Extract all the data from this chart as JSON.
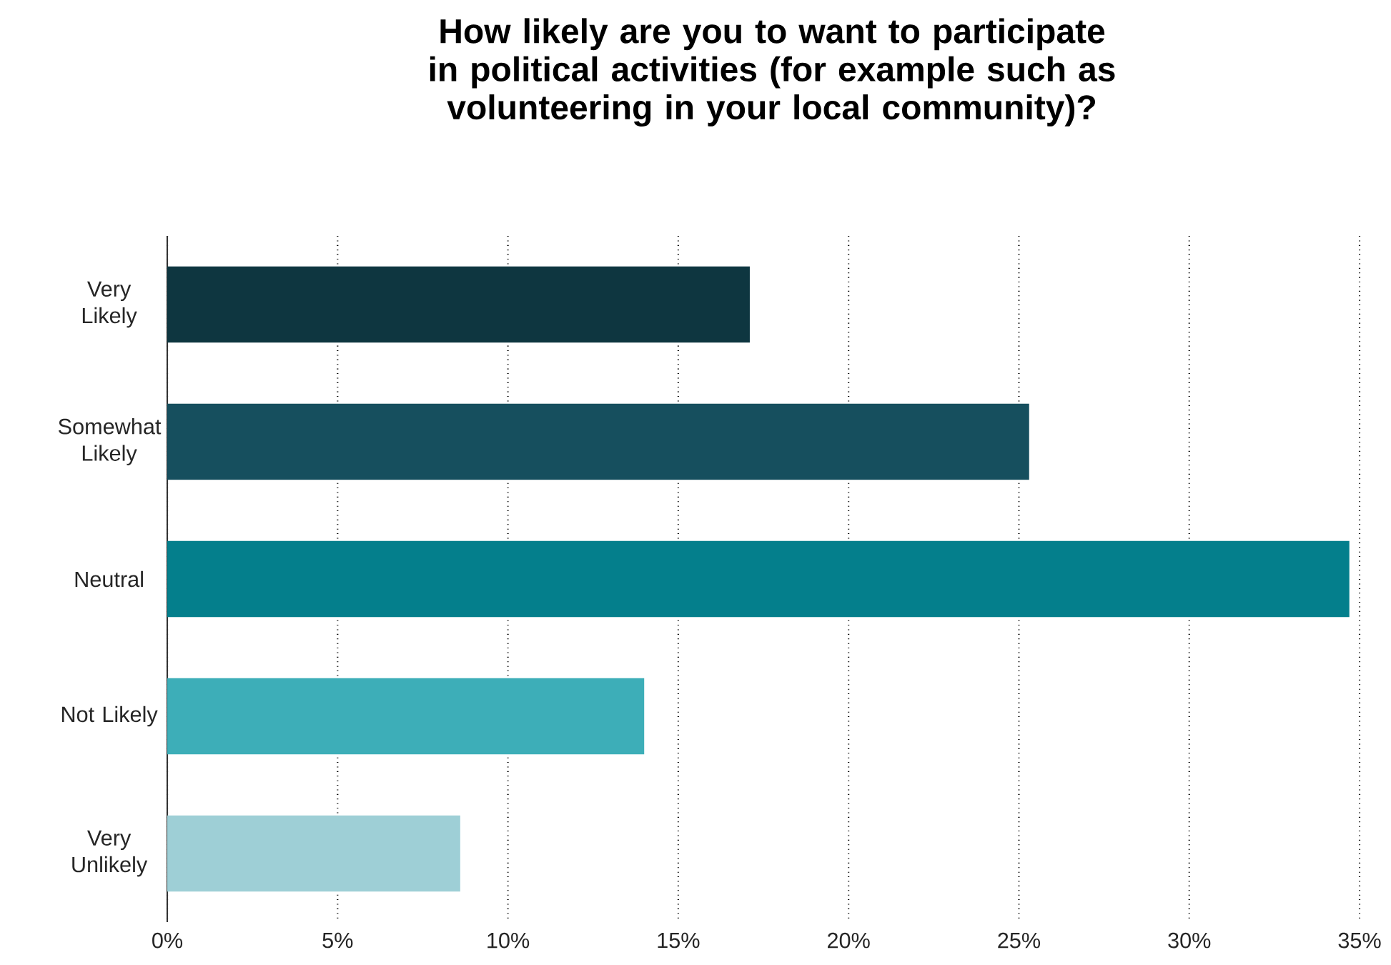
{
  "chart_data": {
    "type": "bar",
    "orientation": "horizontal",
    "title": "How likely are you to want to participate in political activities (for example such as volunteering in your local community)?",
    "categories": [
      "Very Likely",
      "Somewhat Likely",
      "Neutral",
      "Not Likely",
      "Very Unlikely"
    ],
    "values": [
      17.1,
      25.3,
      34.7,
      14.0,
      8.6
    ],
    "colors": [
      "#0e3640",
      "#164f5e",
      "#047f8c",
      "#3daeb8",
      "#9ecfd6"
    ],
    "xlim": [
      0,
      35
    ],
    "xticks": [
      {
        "value": 0,
        "label": "0%"
      },
      {
        "value": 5,
        "label": "5%"
      },
      {
        "value": 10,
        "label": "10%"
      },
      {
        "value": 15,
        "label": "15%"
      },
      {
        "value": 20,
        "label": "20%"
      },
      {
        "value": 25,
        "label": "25%"
      },
      {
        "value": 30,
        "label": "30%"
      },
      {
        "value": 35,
        "label": "35%"
      }
    ],
    "grid": "x"
  }
}
